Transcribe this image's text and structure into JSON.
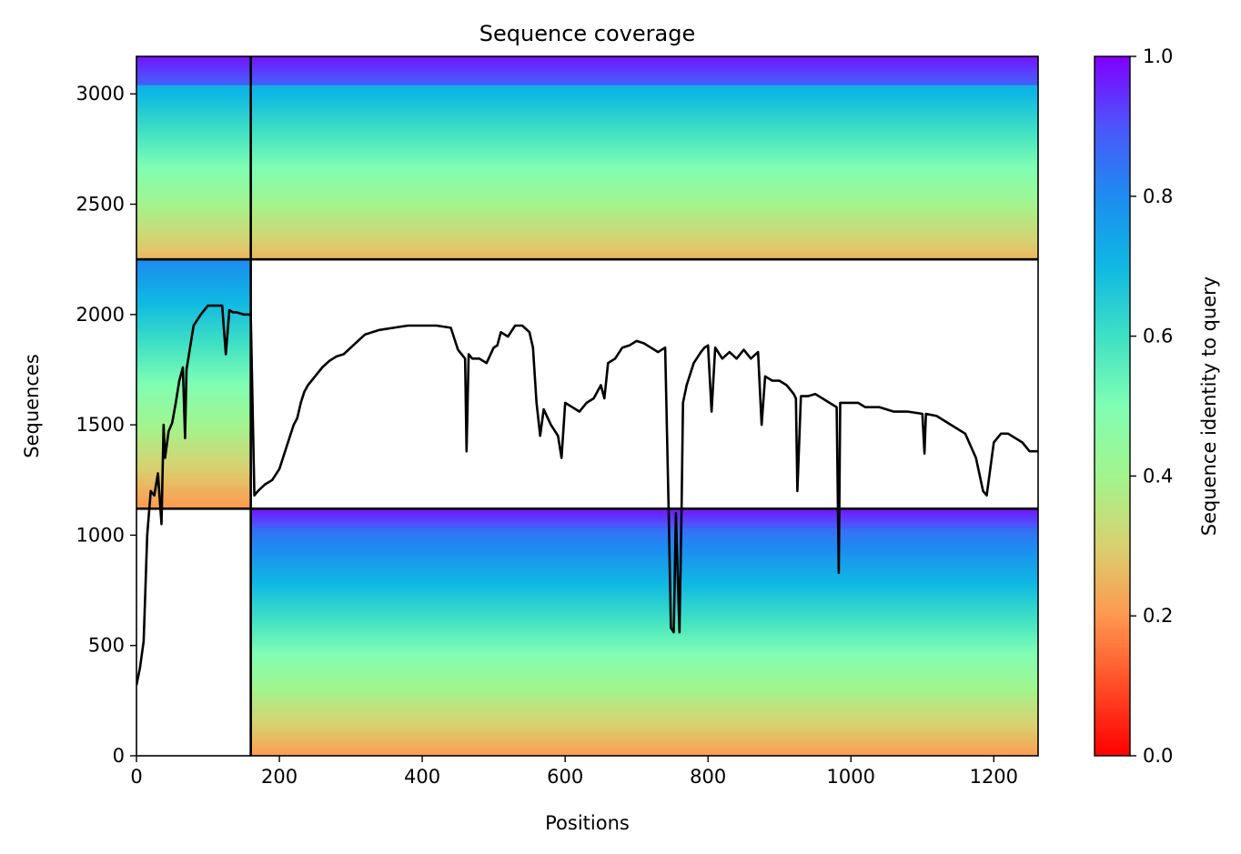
{
  "chart_data": {
    "type": "heatmap",
    "title": "Sequence coverage",
    "xlabel": "Positions",
    "ylabel": "Sequences",
    "xlim": [
      0,
      1262
    ],
    "ylim": [
      0,
      3170
    ],
    "x_ticks": [
      0,
      200,
      400,
      600,
      800,
      1000,
      1200
    ],
    "y_ticks": [
      0,
      500,
      1000,
      1500,
      2000,
      2500,
      3000
    ],
    "colorbar": {
      "label": "Sequence identity to query",
      "range": [
        0.0,
        1.0
      ],
      "ticks": [
        "0.0",
        "0.2",
        "0.4",
        "0.6",
        "0.8",
        "1.0"
      ],
      "colormap": "rainbow"
    },
    "blocks": [
      {
        "x0": 0,
        "x1": 160,
        "y0": 2250,
        "y1": 3170
      },
      {
        "x0": 160,
        "x1": 1262,
        "y0": 2250,
        "y1": 3170
      },
      {
        "x0": 0,
        "x1": 160,
        "y0": 1120,
        "y1": 2250
      },
      {
        "x0": 160,
        "x1": 1262,
        "y0": 0,
        "y1": 1120
      }
    ],
    "dividers": {
      "vertical_x": 160,
      "horizontal_y": [
        1120,
        2250
      ]
    },
    "coverage_line": {
      "color": "#000000",
      "x": [
        0,
        5,
        10,
        15,
        20,
        25,
        30,
        35,
        38,
        40,
        45,
        50,
        55,
        60,
        65,
        68,
        70,
        75,
        80,
        90,
        100,
        110,
        120,
        125,
        130,
        135,
        140,
        150,
        160,
        165,
        170,
        180,
        190,
        200,
        210,
        220,
        225,
        230,
        235,
        240,
        250,
        260,
        270,
        280,
        290,
        300,
        310,
        320,
        340,
        360,
        380,
        400,
        420,
        440,
        450,
        460,
        462,
        465,
        470,
        480,
        490,
        500,
        505,
        510,
        520,
        530,
        540,
        550,
        555,
        560,
        565,
        570,
        580,
        590,
        595,
        600,
        610,
        620,
        630,
        640,
        650,
        655,
        660,
        670,
        680,
        690,
        700,
        710,
        720,
        730,
        740,
        745,
        748,
        752,
        755,
        760,
        763,
        765,
        770,
        780,
        790,
        795,
        800,
        805,
        810,
        820,
        830,
        840,
        850,
        860,
        870,
        875,
        880,
        890,
        900,
        910,
        920,
        923,
        925,
        930,
        940,
        950,
        960,
        970,
        980,
        983,
        985,
        990,
        1000,
        1010,
        1020,
        1040,
        1060,
        1080,
        1100,
        1103,
        1105,
        1120,
        1140,
        1160,
        1175,
        1185,
        1190,
        1195,
        1200,
        1210,
        1220,
        1240,
        1250,
        1262
      ],
      "y": [
        320,
        400,
        520,
        1000,
        1200,
        1180,
        1280,
        1050,
        1500,
        1350,
        1470,
        1510,
        1600,
        1700,
        1760,
        1440,
        1750,
        1850,
        1950,
        2000,
        2040,
        2040,
        2040,
        1820,
        2020,
        2010,
        2010,
        2000,
        2000,
        1180,
        1200,
        1230,
        1250,
        1300,
        1400,
        1500,
        1530,
        1600,
        1650,
        1680,
        1720,
        1760,
        1790,
        1810,
        1820,
        1850,
        1880,
        1910,
        1930,
        1940,
        1950,
        1950,
        1950,
        1940,
        1840,
        1800,
        1380,
        1820,
        1800,
        1800,
        1780,
        1850,
        1860,
        1920,
        1900,
        1950,
        1950,
        1920,
        1850,
        1600,
        1450,
        1570,
        1500,
        1450,
        1350,
        1600,
        1580,
        1560,
        1600,
        1620,
        1680,
        1620,
        1780,
        1800,
        1850,
        1860,
        1880,
        1870,
        1850,
        1830,
        1850,
        1100,
        580,
        560,
        1100,
        560,
        1140,
        1600,
        1680,
        1780,
        1830,
        1850,
        1860,
        1560,
        1850,
        1800,
        1830,
        1800,
        1840,
        1800,
        1830,
        1500,
        1720,
        1700,
        1700,
        1680,
        1640,
        1620,
        1200,
        1630,
        1630,
        1640,
        1620,
        1600,
        1580,
        830,
        1600,
        1600,
        1600,
        1600,
        1580,
        1580,
        1560,
        1560,
        1550,
        1370,
        1550,
        1540,
        1500,
        1460,
        1350,
        1200,
        1180,
        1300,
        1420,
        1460,
        1460,
        1420,
        1380,
        1380
      ]
    }
  }
}
